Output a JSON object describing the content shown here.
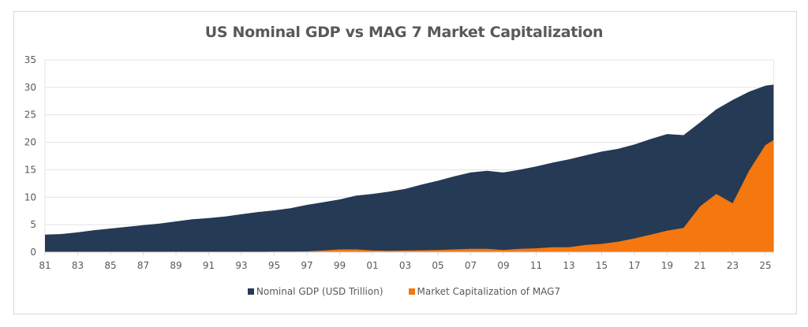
{
  "chart_data": {
    "type": "area",
    "title": "US Nominal  GDP vs MAG 7 Market  Capitalization",
    "xlabel": "",
    "ylabel": "",
    "ylim": [
      0,
      35
    ],
    "yticks": [
      0,
      5,
      10,
      15,
      20,
      25,
      30,
      35
    ],
    "x": [
      1981,
      1982,
      1983,
      1984,
      1985,
      1986,
      1987,
      1988,
      1989,
      1990,
      1991,
      1992,
      1993,
      1994,
      1995,
      1996,
      1997,
      1998,
      1999,
      2000,
      2001,
      2002,
      2003,
      2004,
      2005,
      2006,
      2007,
      2008,
      2009,
      2010,
      2011,
      2012,
      2013,
      2014,
      2015,
      2016,
      2017,
      2018,
      2019,
      2020,
      2021,
      2022,
      2023,
      2024,
      2025,
      2025.5
    ],
    "xtick_labels": [
      "81",
      "83",
      "85",
      "87",
      "89",
      "91",
      "93",
      "95",
      "97",
      "99",
      "01",
      "03",
      "05",
      "07",
      "09",
      "11",
      "13",
      "15",
      "17",
      "19",
      "21",
      "23",
      "25"
    ],
    "xtick_years": [
      1981,
      1983,
      1985,
      1987,
      1989,
      1991,
      1993,
      1995,
      1997,
      1999,
      2001,
      2003,
      2005,
      2007,
      2009,
      2011,
      2013,
      2015,
      2017,
      2019,
      2021,
      2023,
      2025
    ],
    "series": [
      {
        "name": "Nominal GDP (USD Trillion)",
        "color": "#243A55",
        "values": [
          3.2,
          3.3,
          3.6,
          4.0,
          4.3,
          4.6,
          4.9,
          5.2,
          5.6,
          6.0,
          6.2,
          6.5,
          6.9,
          7.3,
          7.6,
          8.0,
          8.6,
          9.1,
          9.6,
          10.3,
          10.6,
          11.0,
          11.5,
          12.3,
          13.0,
          13.8,
          14.5,
          14.8,
          14.5,
          15.0,
          15.6,
          16.3,
          16.9,
          17.6,
          18.3,
          18.8,
          19.6,
          20.6,
          21.5,
          21.3,
          23.6,
          26.0,
          27.7,
          29.2,
          30.3,
          30.5
        ]
      },
      {
        "name": "Market Capitalization of MAG7",
        "color": "#F4770F",
        "values": [
          0.0,
          0.0,
          0.0,
          0.0,
          0.0,
          0.0,
          0.0,
          0.0,
          0.0,
          0.0,
          0.0,
          0.05,
          0.05,
          0.05,
          0.1,
          0.1,
          0.15,
          0.3,
          0.5,
          0.5,
          0.3,
          0.25,
          0.3,
          0.35,
          0.4,
          0.5,
          0.6,
          0.6,
          0.4,
          0.6,
          0.7,
          0.9,
          0.9,
          1.3,
          1.5,
          1.9,
          2.5,
          3.2,
          3.9,
          4.4,
          8.3,
          10.6,
          8.9,
          14.8,
          19.5,
          20.4
        ]
      }
    ],
    "legend_position": "bottom",
    "grid": true
  }
}
